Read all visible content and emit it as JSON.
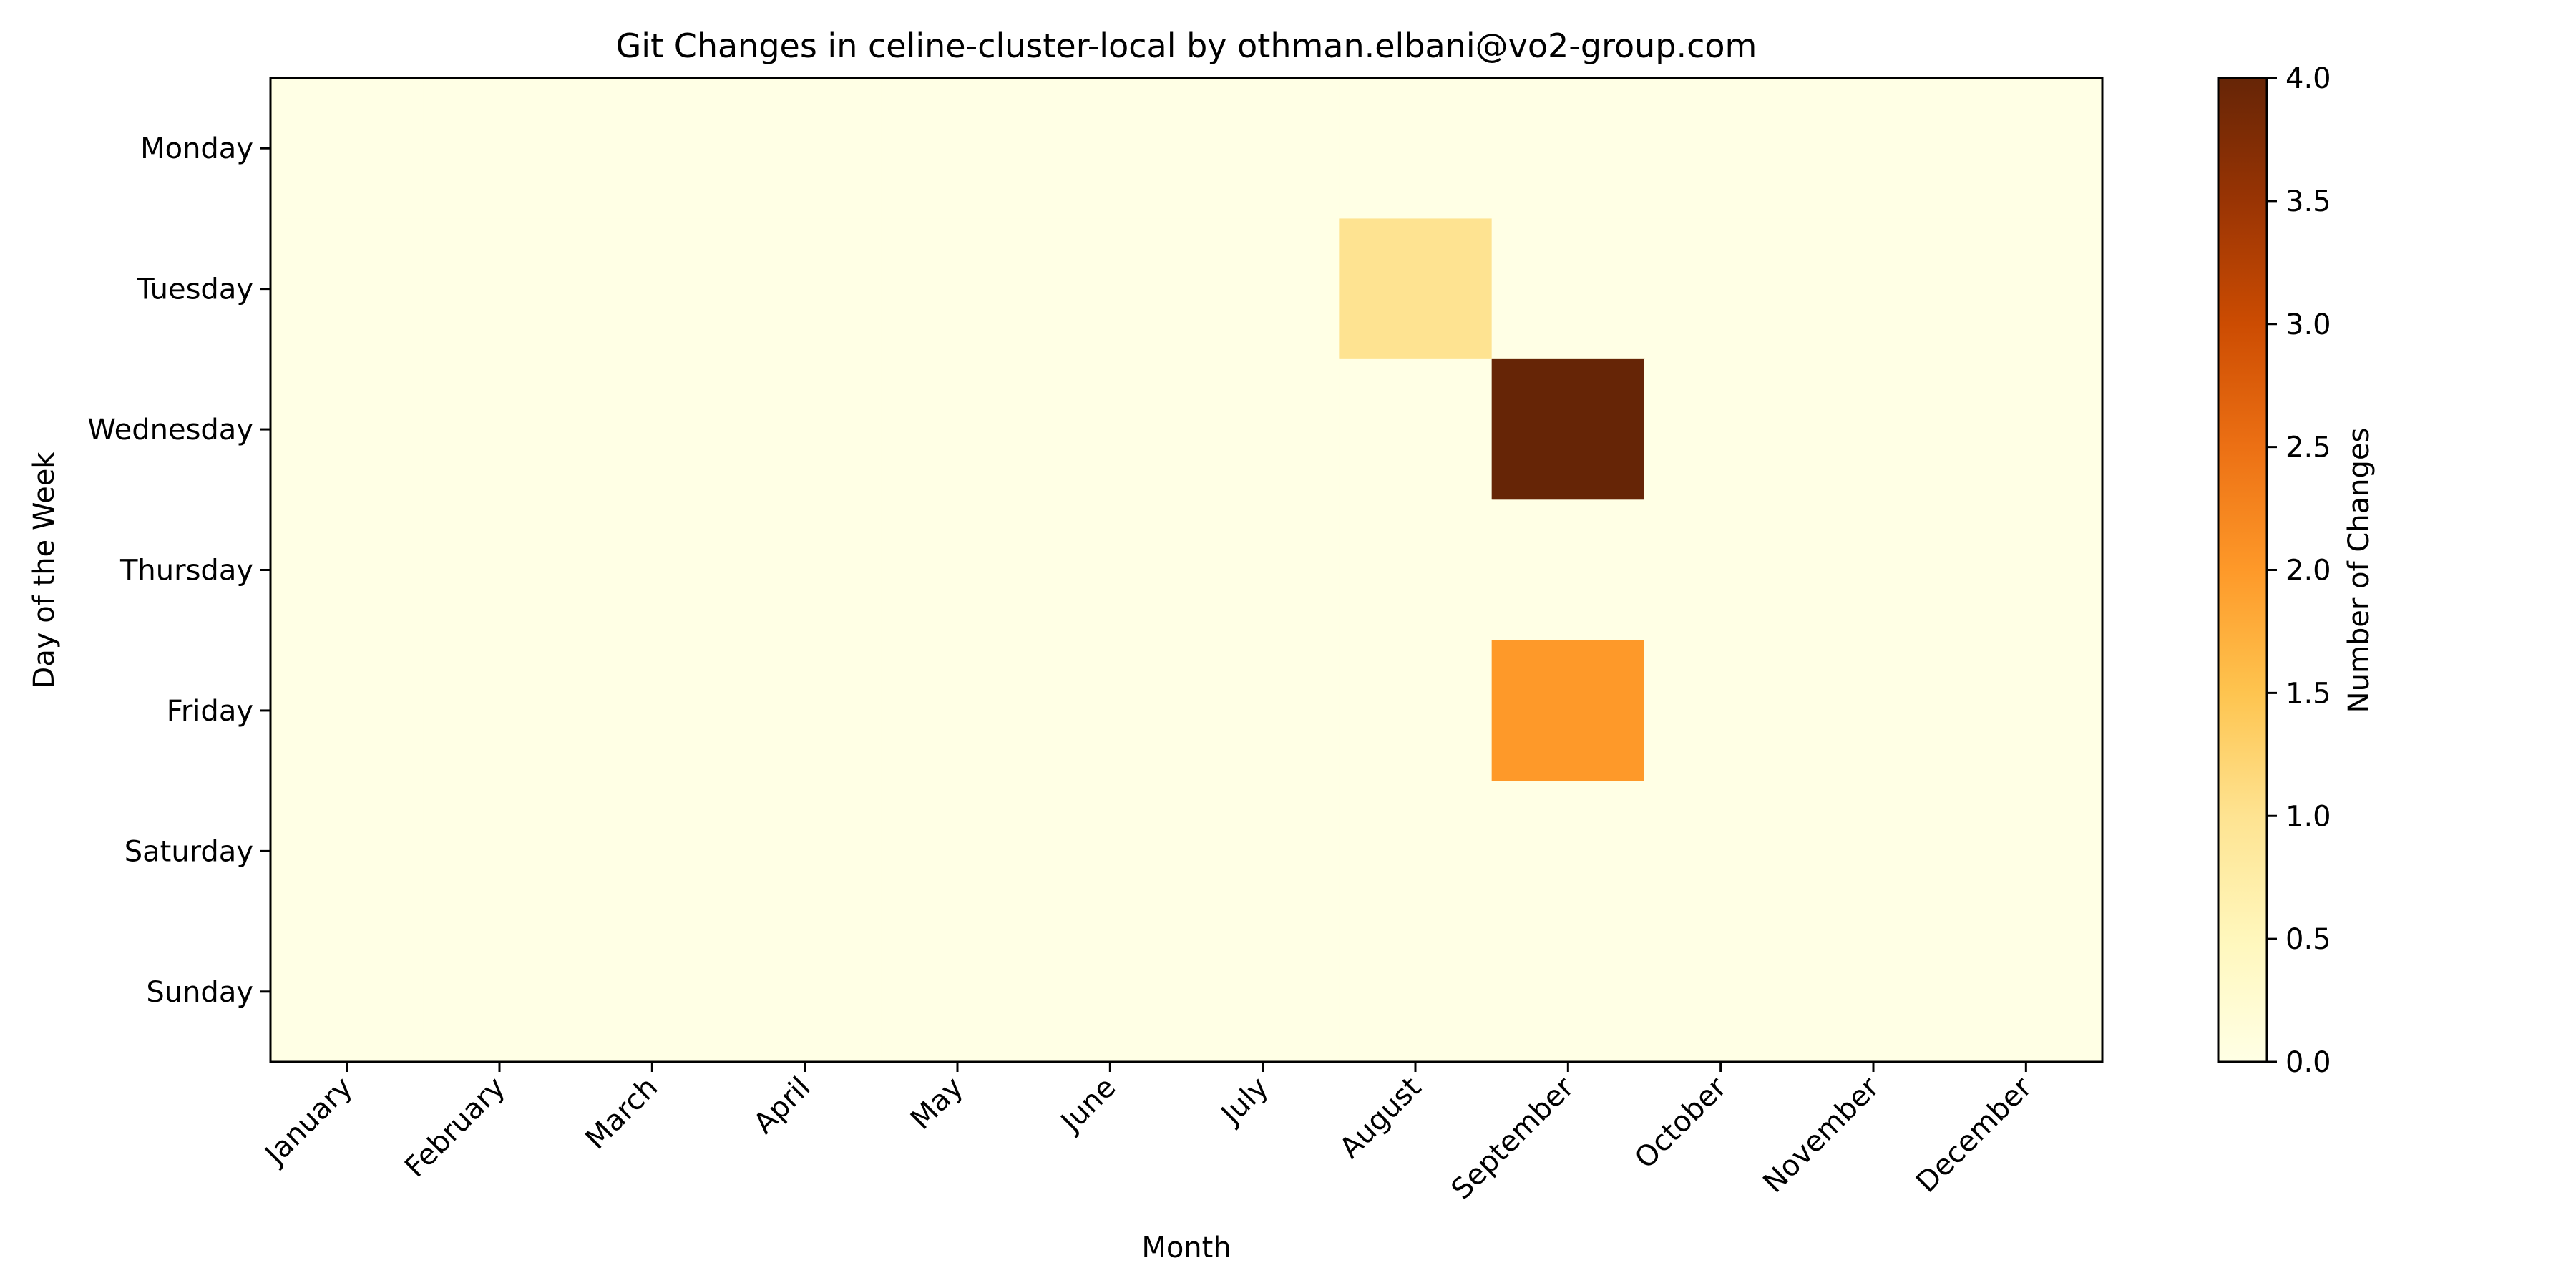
{
  "chart_data": {
    "type": "heatmap",
    "title": "Git Changes in celine-cluster-local by othman.elbani@vo2-group.com",
    "xlabel": "Month",
    "ylabel": "Day of the Week",
    "x_categories": [
      "January",
      "February",
      "March",
      "April",
      "May",
      "June",
      "July",
      "August",
      "September",
      "October",
      "November",
      "December"
    ],
    "y_categories": [
      "Monday",
      "Tuesday",
      "Wednesday",
      "Thursday",
      "Friday",
      "Saturday",
      "Sunday"
    ],
    "values": [
      [
        0,
        0,
        0,
        0,
        0,
        0,
        0,
        0,
        0,
        0,
        0,
        0
      ],
      [
        0,
        0,
        0,
        0,
        0,
        0,
        0,
        1,
        0,
        0,
        0,
        0
      ],
      [
        0,
        0,
        0,
        0,
        0,
        0,
        0,
        0,
        4,
        0,
        0,
        0
      ],
      [
        0,
        0,
        0,
        0,
        0,
        0,
        0,
        0,
        0,
        0,
        0,
        0
      ],
      [
        0,
        0,
        0,
        0,
        0,
        0,
        0,
        0,
        2,
        0,
        0,
        0
      ],
      [
        0,
        0,
        0,
        0,
        0,
        0,
        0,
        0,
        0,
        0,
        0,
        0
      ],
      [
        0,
        0,
        0,
        0,
        0,
        0,
        0,
        0,
        0,
        0,
        0,
        0
      ]
    ],
    "colorbar": {
      "label": "Number of Changes",
      "range": [
        0,
        4
      ],
      "ticks": [
        "0.0",
        "0.5",
        "1.0",
        "1.5",
        "2.0",
        "2.5",
        "3.0",
        "3.5",
        "4.0"
      ],
      "colormap": "YlOrBr",
      "colors": [
        "#ffffe5",
        "#fff7bc",
        "#fee391",
        "#fec44f",
        "#fe9929",
        "#ec7014",
        "#cc4c02",
        "#993404",
        "#662506"
      ]
    },
    "grid": false
  }
}
